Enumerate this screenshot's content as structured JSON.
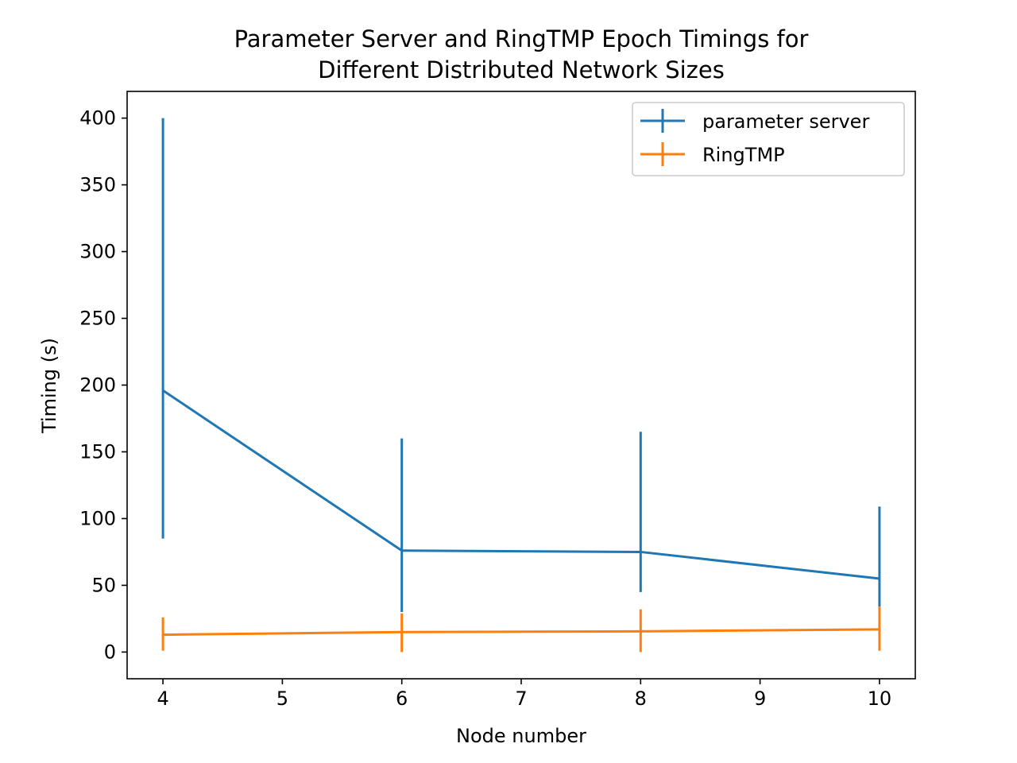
{
  "chart_data": {
    "type": "line",
    "title_lines": [
      "Parameter Server and RingTMP Epoch Timings for",
      "Different Distributed Network Sizes"
    ],
    "xlabel": "Node number",
    "ylabel": "Timing (s)",
    "xlim": [
      3.7,
      10.3
    ],
    "ylim": [
      -20,
      420
    ],
    "xticks": [
      "4",
      "5",
      "6",
      "7",
      "8",
      "9",
      "10"
    ],
    "yticks": [
      "0",
      "50",
      "100",
      "150",
      "200",
      "250",
      "300",
      "350",
      "400"
    ],
    "grid": false,
    "legend_position": "upper right",
    "series": [
      {
        "name": "parameter server",
        "color": "#1f77b4",
        "x": [
          4,
          6,
          8,
          10
        ],
        "y": [
          196,
          76,
          75,
          55
        ],
        "yerr_low": [
          85,
          30,
          45,
          34
        ],
        "yerr_high": [
          400,
          160,
          165,
          109
        ]
      },
      {
        "name": "RingTMP",
        "color": "#ff7f0e",
        "x": [
          4,
          6,
          8,
          10
        ],
        "y": [
          13,
          15,
          15.5,
          17
        ],
        "yerr_low": [
          1,
          0,
          0,
          1
        ],
        "yerr_high": [
          26,
          29,
          32,
          34
        ]
      }
    ]
  }
}
